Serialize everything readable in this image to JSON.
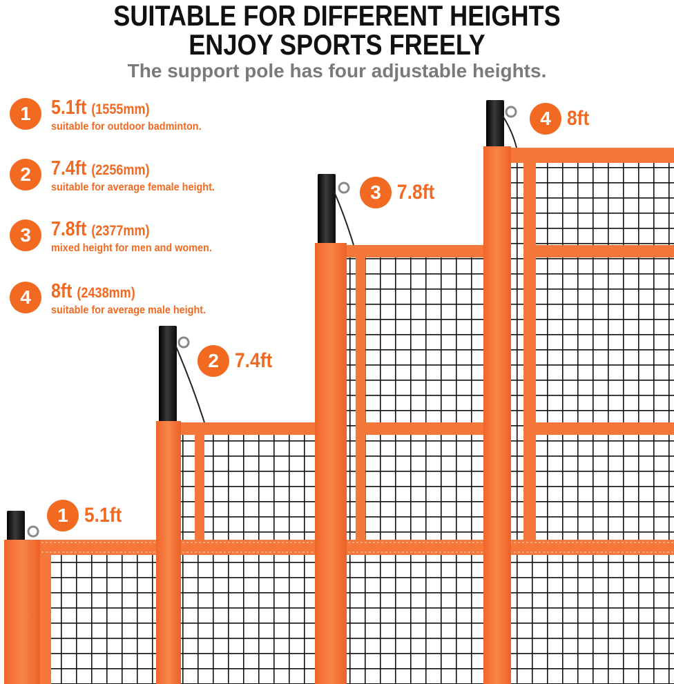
{
  "header": {
    "line1": "SUITABLE FOR DIFFERENT HEIGHTS",
    "line2": "ENJOY SPORTS FREELY",
    "subtitle": "The support pole has four adjustable heights."
  },
  "specs": [
    {
      "number": "1",
      "height": "5.1ft",
      "metric": "(1555mm)",
      "description": "suitable for outdoor badminton."
    },
    {
      "number": "2",
      "height": "7.4ft",
      "metric": "(2256mm)",
      "description": "suitable for average female height."
    },
    {
      "number": "3",
      "height": "7.8ft",
      "metric": "(2377mm)",
      "description": "mixed height for men and women."
    },
    {
      "number": "4",
      "height": "8ft",
      "metric": "(2438mm)",
      "description": "suitable for average male height."
    }
  ],
  "tags": [
    {
      "number": "1",
      "label": "5.1ft"
    },
    {
      "number": "2",
      "label": "7.4ft"
    },
    {
      "number": "3",
      "label": "7.8ft"
    },
    {
      "number": "4",
      "label": "8ft"
    }
  ],
  "colors": {
    "accent": "#f26a21",
    "band": "#f5773a",
    "band_dark": "#e8652a",
    "pole": "#1a1a1a",
    "net": "#111111",
    "headline": "#111111",
    "subtitle": "#7a7a7a"
  }
}
